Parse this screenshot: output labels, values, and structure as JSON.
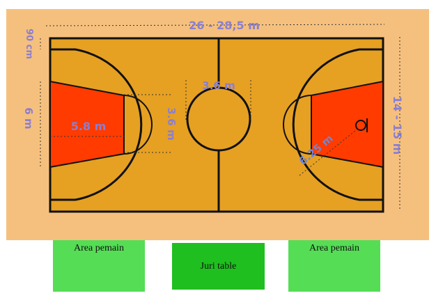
{
  "colors": {
    "surround": "#f5c07e",
    "court": "#e6a022",
    "key": "#ff3b00",
    "lines": "#111111",
    "dimension_text": "#8a7fcf",
    "dimension_text_alt": "#6f86d6",
    "player_area": "#55dd55",
    "table_area": "#1fbf1f"
  },
  "labels": {
    "length": "26 - 28,5 m",
    "width": "14 - 15 m",
    "line_offset": "90 cm",
    "key_width": "6 m",
    "key_length": "5.8 m",
    "ft_circle": "3.6 m",
    "center_circle": "3.6 m",
    "three_point": "6.25 m"
  },
  "areas": {
    "left_player": "Area pemain",
    "table": "Juri table",
    "right_player": "Area pemain"
  }
}
